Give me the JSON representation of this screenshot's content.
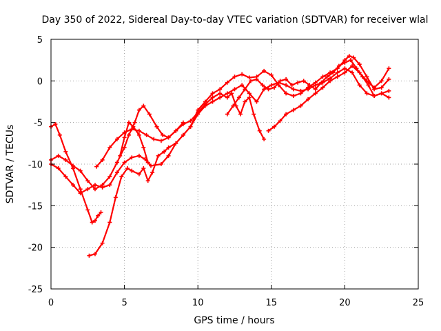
{
  "chart_data": {
    "type": "scatter",
    "title": "Day 350 of 2022, Sidereal Day-to-day VTEC variation (SDTVAR) for receiver wlal",
    "xlabel": "GPS time / hours",
    "ylabel": "SDTVAR / TECUs",
    "xlim": [
      0,
      25
    ],
    "ylim": [
      -25,
      5
    ],
    "xticks": [
      0,
      5,
      10,
      15,
      20,
      25
    ],
    "yticks": [
      -25,
      -20,
      -15,
      -10,
      -5,
      0,
      5
    ],
    "grid": true,
    "marker": "plus",
    "series": [
      {
        "color": "#ff0000",
        "points": [
          [
            0.0,
            -5.5
          ],
          [
            0.3,
            -5.2
          ],
          [
            0.6,
            -6.5
          ],
          [
            1.0,
            -8.5
          ],
          [
            1.5,
            -10.5
          ],
          [
            2.0,
            -13.0
          ],
          [
            2.5,
            -15.5
          ],
          [
            2.8,
            -17.0
          ],
          [
            3.0,
            -16.8
          ],
          [
            3.2,
            -16.2
          ],
          [
            3.4,
            -15.8
          ]
        ]
      },
      {
        "color": "#ff0000",
        "points": [
          [
            0.0,
            -10.0
          ],
          [
            0.5,
            -10.5
          ],
          [
            1.0,
            -11.5
          ],
          [
            1.5,
            -12.5
          ],
          [
            2.0,
            -13.5
          ],
          [
            2.5,
            -13.0
          ],
          [
            3.0,
            -12.5
          ],
          [
            3.5,
            -12.8
          ],
          [
            4.0,
            -12.5
          ],
          [
            4.5,
            -11.0
          ],
          [
            5.0,
            -9.8
          ],
          [
            5.5,
            -9.2
          ],
          [
            6.0,
            -9.0
          ],
          [
            6.4,
            -9.4
          ],
          [
            6.8,
            -10.2
          ],
          [
            7.5,
            -10.0
          ],
          [
            8.0,
            -9.0
          ],
          [
            8.5,
            -7.5
          ],
          [
            9.0,
            -6.5
          ],
          [
            9.5,
            -5.5
          ],
          [
            10.0,
            -3.5
          ],
          [
            10.5,
            -2.5
          ],
          [
            11.0,
            -1.5
          ],
          [
            11.5,
            -1.0
          ],
          [
            12.0,
            -0.2
          ],
          [
            12.5,
            0.5
          ],
          [
            13.0,
            0.8
          ],
          [
            13.5,
            0.4
          ],
          [
            14.0,
            0.5
          ],
          [
            14.5,
            1.2
          ],
          [
            15.0,
            0.7
          ],
          [
            15.5,
            -0.5
          ],
          [
            16.0,
            -1.5
          ],
          [
            16.5,
            -1.8
          ],
          [
            17.0,
            -1.5
          ],
          [
            17.5,
            -0.8
          ],
          [
            18.0,
            -0.2
          ],
          [
            18.5,
            0.5
          ],
          [
            19.0,
            1.0
          ],
          [
            19.5,
            1.5
          ],
          [
            20.0,
            2.5
          ],
          [
            20.3,
            3.0
          ],
          [
            20.6,
            2.8
          ],
          [
            21.0,
            2.0
          ],
          [
            21.5,
            0.5
          ],
          [
            22.0,
            -1.0
          ],
          [
            22.5,
            -0.8
          ],
          [
            23.0,
            0.2
          ]
        ]
      },
      {
        "color": "#ff0000",
        "points": [
          [
            0.0,
            -9.5
          ],
          [
            0.5,
            -9.0
          ],
          [
            1.0,
            -9.5
          ],
          [
            1.5,
            -10.2
          ],
          [
            2.0,
            -10.8
          ],
          [
            2.5,
            -12.0
          ],
          [
            3.0,
            -13.0
          ],
          [
            3.5,
            -12.5
          ],
          [
            4.0,
            -11.5
          ],
          [
            4.5,
            -9.8
          ],
          [
            5.0,
            -8.0
          ],
          [
            5.3,
            -6.5
          ],
          [
            5.7,
            -5.0
          ],
          [
            6.0,
            -3.5
          ],
          [
            6.3,
            -3.0
          ],
          [
            6.7,
            -4.0
          ],
          [
            7.2,
            -5.5
          ],
          [
            7.6,
            -6.5
          ],
          [
            8.0,
            -6.8
          ],
          [
            8.5,
            -6.0
          ],
          [
            9.0,
            -5.2
          ],
          [
            9.5,
            -4.8
          ],
          [
            10.0,
            -3.8
          ],
          [
            10.5,
            -2.8
          ],
          [
            11.0,
            -2.0
          ],
          [
            11.5,
            -1.5
          ],
          [
            12.0,
            -2.0
          ],
          [
            12.3,
            -1.5
          ],
          [
            12.6,
            -3.0
          ],
          [
            12.9,
            -4.0
          ],
          [
            13.2,
            -2.5
          ],
          [
            13.5,
            -2.0
          ],
          [
            13.8,
            -4.0
          ],
          [
            14.2,
            -6.0
          ],
          [
            14.5,
            -7.0
          ]
        ]
      },
      {
        "color": "#ff0000",
        "points": [
          [
            2.6,
            -21.0
          ],
          [
            3.0,
            -20.8
          ],
          [
            3.5,
            -19.5
          ],
          [
            4.0,
            -17.0
          ],
          [
            4.4,
            -14.0
          ],
          [
            4.8,
            -11.5
          ],
          [
            5.2,
            -10.5
          ],
          [
            5.5,
            -10.8
          ],
          [
            6.0,
            -11.2
          ],
          [
            6.3,
            -10.5
          ],
          [
            6.6,
            -12.0
          ],
          [
            6.9,
            -11.0
          ],
          [
            7.3,
            -9.0
          ],
          [
            7.7,
            -8.5
          ],
          [
            8.0,
            -8.0
          ],
          [
            8.5,
            -7.5
          ],
          [
            9.0,
            -6.5
          ],
          [
            9.5,
            -5.5
          ],
          [
            10.0,
            -4.0
          ],
          [
            10.5,
            -3.0
          ],
          [
            11.0,
            -2.5
          ],
          [
            11.5,
            -2.0
          ],
          [
            12.0,
            -1.5
          ],
          [
            12.5,
            -1.0
          ],
          [
            13.0,
            -0.5
          ],
          [
            13.5,
            -1.5
          ],
          [
            14.0,
            -2.5
          ],
          [
            14.5,
            -1.0
          ],
          [
            15.0,
            -0.5
          ],
          [
            15.5,
            -0.2
          ],
          [
            16.0,
            -0.5
          ],
          [
            16.5,
            -1.0
          ],
          [
            17.0,
            -1.2
          ],
          [
            17.5,
            -1.0
          ],
          [
            18.0,
            -0.5
          ],
          [
            18.5,
            -0.2
          ],
          [
            19.0,
            0.3
          ],
          [
            19.5,
            1.0
          ],
          [
            20.0,
            1.5
          ],
          [
            20.5,
            1.0
          ],
          [
            21.0,
            -0.5
          ],
          [
            21.5,
            -1.5
          ],
          [
            22.0,
            -1.8
          ],
          [
            22.5,
            -1.5
          ],
          [
            23.0,
            -1.2
          ]
        ]
      },
      {
        "color": "#ff0000",
        "points": [
          [
            3.1,
            -10.3
          ],
          [
            3.5,
            -9.5
          ],
          [
            4.0,
            -8.0
          ],
          [
            4.5,
            -7.0
          ],
          [
            5.0,
            -6.2
          ],
          [
            5.5,
            -5.8
          ],
          [
            6.0,
            -6.0
          ],
          [
            6.5,
            -6.5
          ],
          [
            7.0,
            -7.0
          ],
          [
            7.5,
            -7.2
          ],
          [
            8.0,
            -6.8
          ],
          [
            8.5,
            -6.0
          ],
          [
            9.0,
            -5.0
          ]
        ]
      },
      {
        "color": "#ff0000",
        "points": [
          [
            4.7,
            -9.0
          ],
          [
            5.0,
            -6.8
          ],
          [
            5.3,
            -5.0
          ],
          [
            5.6,
            -5.5
          ],
          [
            6.0,
            -6.5
          ],
          [
            6.3,
            -8.0
          ],
          [
            6.6,
            -9.8
          ]
        ]
      },
      {
        "color": "#ff0000",
        "points": [
          [
            14.8,
            -6.0
          ],
          [
            15.2,
            -5.5
          ],
          [
            15.6,
            -4.8
          ],
          [
            16.0,
            -4.0
          ],
          [
            16.5,
            -3.5
          ],
          [
            17.0,
            -3.0
          ],
          [
            17.5,
            -2.2
          ],
          [
            18.0,
            -1.5
          ],
          [
            18.5,
            -0.8
          ],
          [
            19.0,
            0.0
          ],
          [
            19.5,
            0.5
          ],
          [
            20.0,
            1.0
          ],
          [
            20.5,
            1.8
          ],
          [
            21.0,
            1.0
          ],
          [
            21.5,
            0.0
          ],
          [
            22.0,
            -0.8
          ],
          [
            22.5,
            0.0
          ],
          [
            23.0,
            1.5
          ]
        ]
      },
      {
        "color": "#ff0000",
        "points": [
          [
            12.0,
            -4.0
          ],
          [
            12.4,
            -3.0
          ],
          [
            12.8,
            -2.0
          ],
          [
            13.2,
            -1.0
          ],
          [
            13.6,
            0.0
          ],
          [
            14.0,
            0.2
          ],
          [
            14.4,
            -0.5
          ],
          [
            14.8,
            -1.0
          ],
          [
            15.2,
            -0.8
          ],
          [
            15.6,
            0.0
          ],
          [
            16.0,
            0.2
          ],
          [
            16.4,
            -0.5
          ],
          [
            16.8,
            -0.2
          ],
          [
            17.2,
            0.0
          ],
          [
            17.6,
            -0.5
          ],
          [
            18.0,
            -1.0
          ],
          [
            18.4,
            -0.2
          ],
          [
            18.8,
            0.5
          ],
          [
            19.2,
            1.0
          ],
          [
            19.6,
            1.8
          ],
          [
            20.0,
            2.2
          ],
          [
            20.4,
            2.5
          ],
          [
            20.8,
            1.5
          ],
          [
            21.2,
            0.5
          ],
          [
            21.6,
            -0.5
          ],
          [
            22.0,
            -1.8
          ],
          [
            22.5,
            -1.5
          ],
          [
            23.0,
            -2.0
          ]
        ]
      }
    ]
  }
}
